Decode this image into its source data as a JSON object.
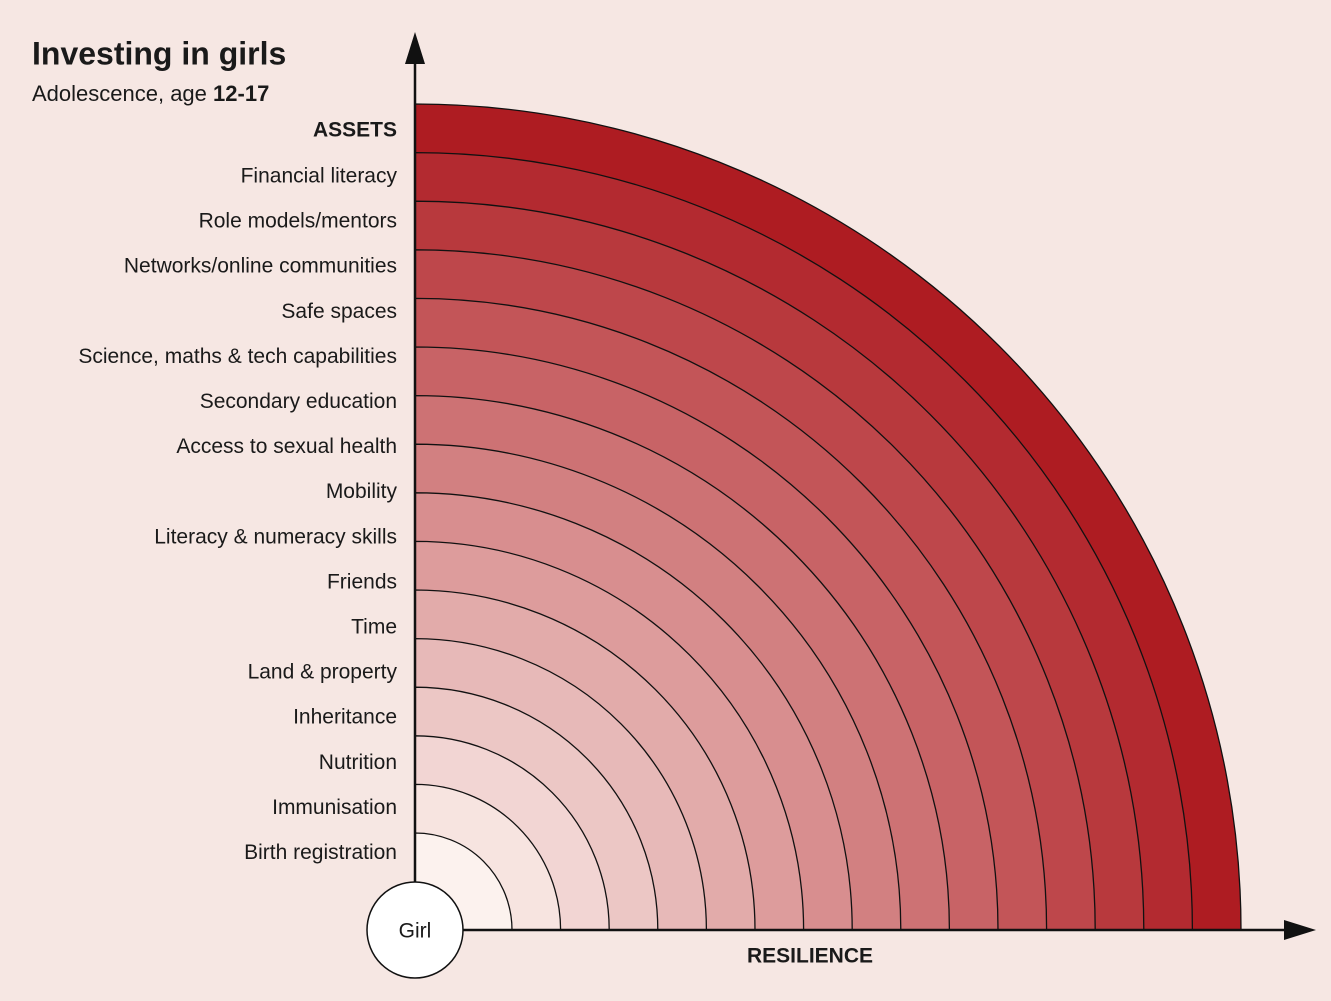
{
  "header": {
    "title": "Investing in girls",
    "subtitle": {
      "text": "Adolescence, age",
      "age": "12-17"
    }
  },
  "axes": {
    "y_label": "ASSETS",
    "x_label": "RESILIENCE"
  },
  "assets": [
    "Financial literacy",
    "Role models/mentors",
    "Networks/online communities",
    "Safe spaces",
    "Science, maths & tech capabilities",
    "Secondary education",
    "Access to sexual health",
    "Mobility",
    "Literacy & numeracy skills",
    "Friends",
    "Time",
    "Land & property",
    "Inheritance",
    "Nutrition",
    "Immunisation",
    "Birth registration"
  ],
  "center": "Girl"
}
